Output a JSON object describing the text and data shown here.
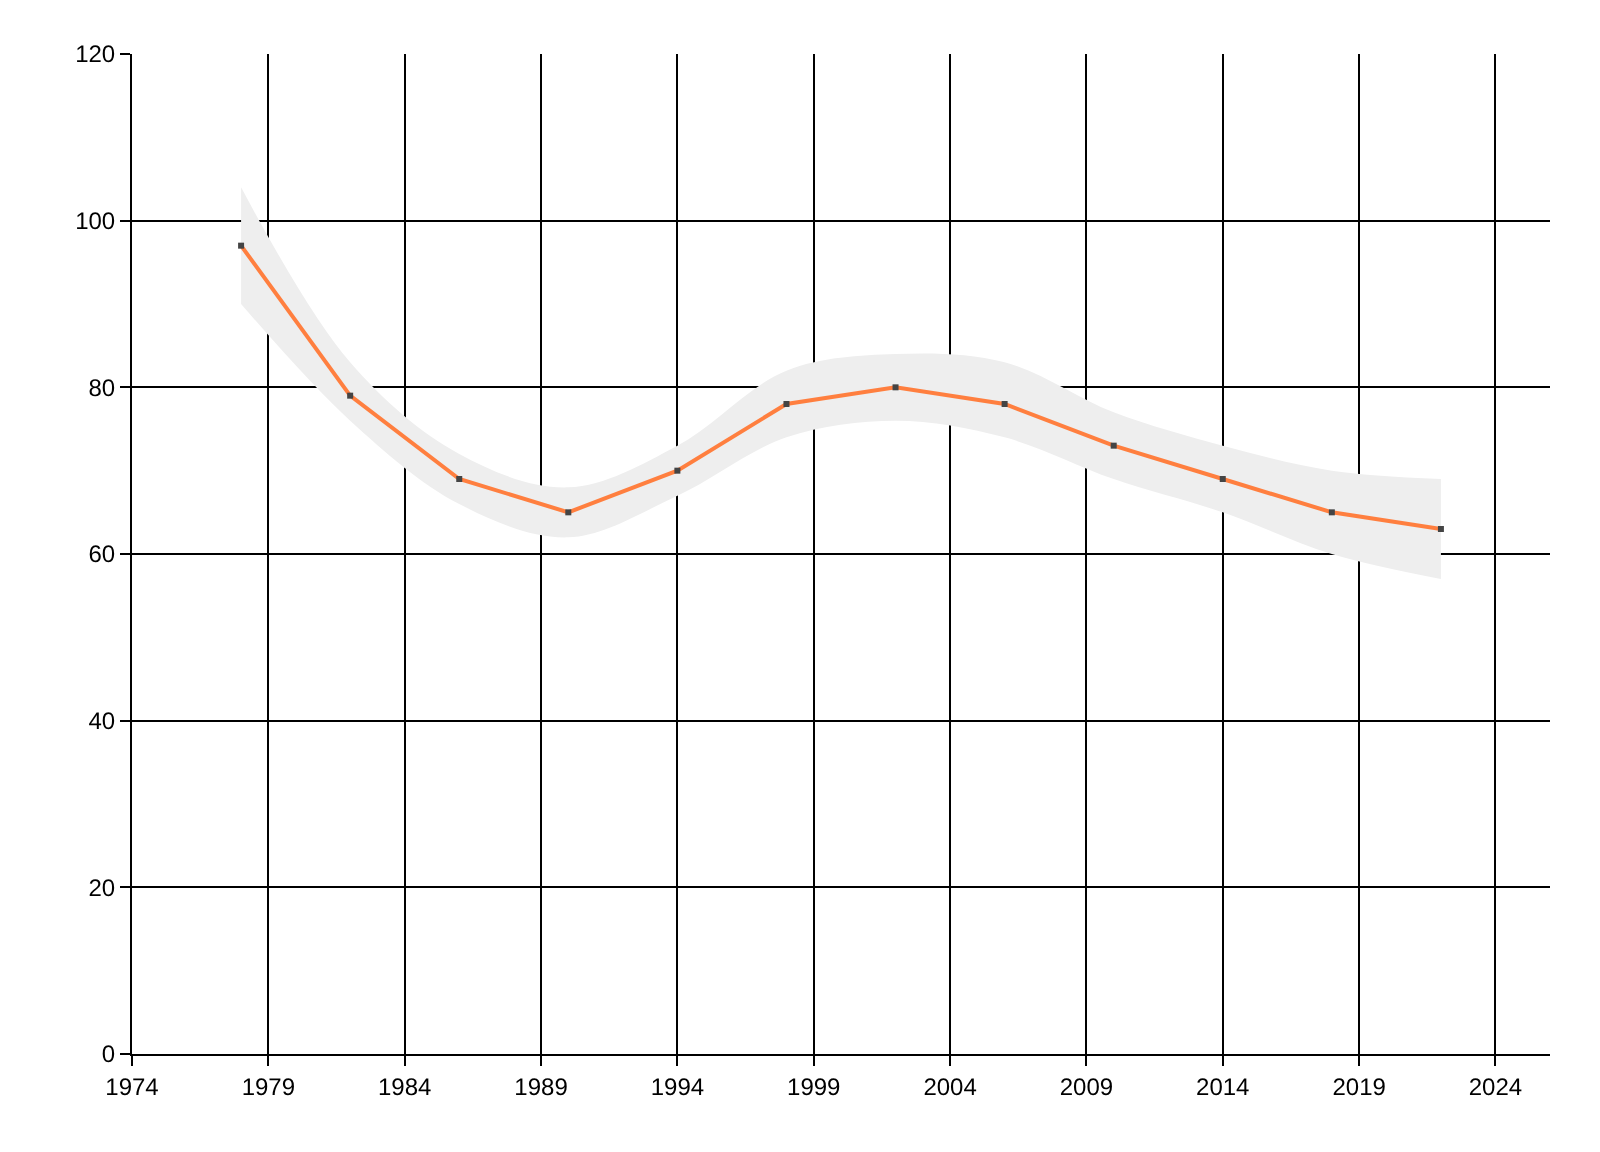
{
  "chart_data": {
    "type": "line",
    "x": [
      1978,
      1982,
      1986,
      1990,
      1994,
      1998,
      2002,
      2006,
      2010,
      2014,
      2018,
      2022
    ],
    "series": [
      {
        "color": "#ff7f3f",
        "values": [
          97,
          79,
          69,
          65,
          70,
          78,
          80,
          78,
          73,
          69,
          65,
          63
        ],
        "lower": [
          90,
          76,
          66,
          62,
          67,
          74,
          76,
          74,
          69,
          65,
          60,
          57
        ],
        "upper": [
          104,
          83,
          72,
          68,
          73,
          82,
          84,
          83,
          77,
          73,
          70,
          69
        ]
      }
    ],
    "xlim": [
      1974,
      2026
    ],
    "xticks": [
      1974,
      1979,
      1984,
      1989,
      1994,
      1999,
      2004,
      2009,
      2014,
      2019,
      2024
    ],
    "ylim": [
      0,
      120
    ],
    "yticks": [
      0,
      20,
      40,
      60,
      80,
      100,
      120
    ],
    "grid": true,
    "marker": "square",
    "line_style": "solid"
  }
}
